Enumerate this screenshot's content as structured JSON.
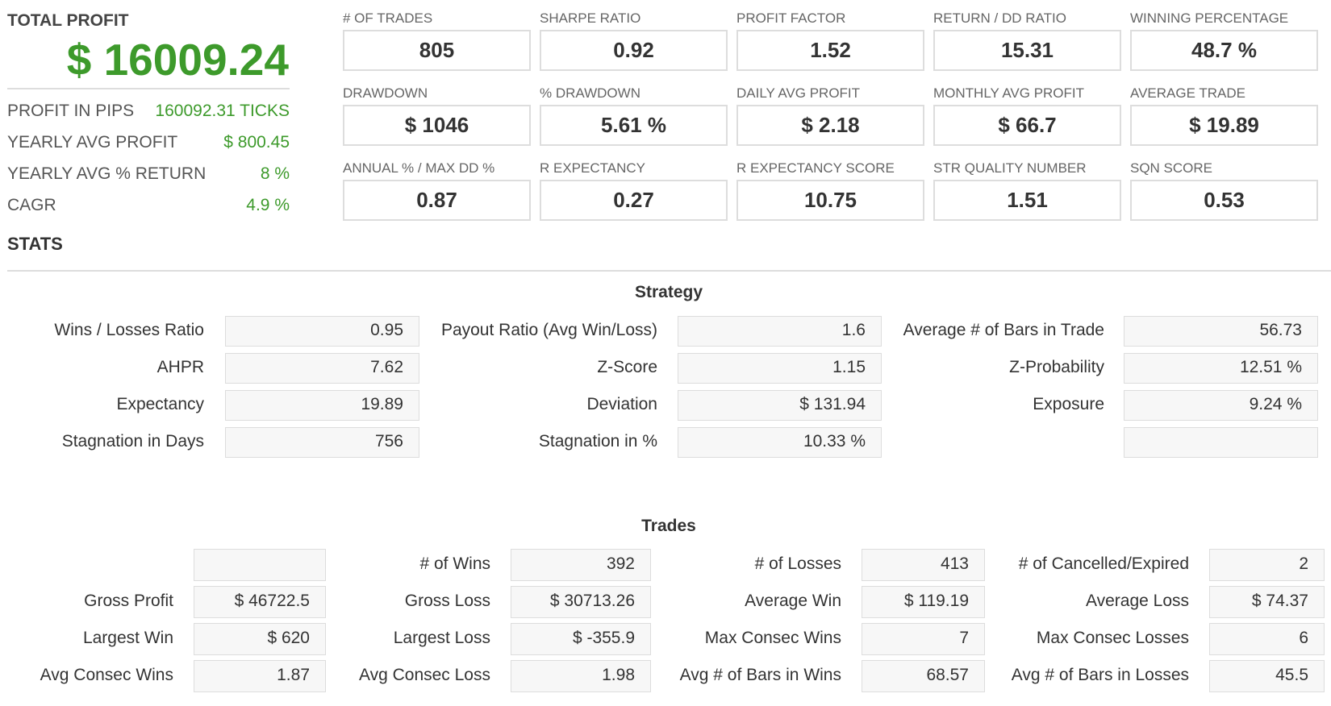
{
  "summary": {
    "title": "TOTAL PROFIT",
    "value": "$ 16009.24",
    "rows": [
      {
        "label": "PROFIT IN PIPS",
        "value": "160092.31 TICKS"
      },
      {
        "label": "YEARLY AVG PROFIT",
        "value": "$ 800.45"
      },
      {
        "label": "YEARLY AVG % RETURN",
        "value": "8 %"
      },
      {
        "label": "CAGR",
        "value": "4.9 %"
      }
    ]
  },
  "metrics": [
    {
      "label": "# OF TRADES",
      "value": "805"
    },
    {
      "label": "SHARPE RATIO",
      "value": "0.92"
    },
    {
      "label": "PROFIT FACTOR",
      "value": "1.52"
    },
    {
      "label": "RETURN / DD RATIO",
      "value": "15.31"
    },
    {
      "label": "WINNING PERCENTAGE",
      "value": "48.7 %"
    },
    {
      "label": "DRAWDOWN",
      "value": "$ 1046"
    },
    {
      "label": "% DRAWDOWN",
      "value": "5.61 %"
    },
    {
      "label": "DAILY AVG PROFIT",
      "value": "$ 2.18"
    },
    {
      "label": "MONTHLY AVG PROFIT",
      "value": "$ 66.7"
    },
    {
      "label": "AVERAGE TRADE",
      "value": "$ 19.89"
    },
    {
      "label": "ANNUAL % / MAX DD %",
      "value": "0.87"
    },
    {
      "label": "R EXPECTANCY",
      "value": "0.27"
    },
    {
      "label": "R EXPECTANCY SCORE",
      "value": "10.75"
    },
    {
      "label": "STR QUALITY NUMBER",
      "value": "1.51"
    },
    {
      "label": "SQN SCORE",
      "value": "0.53"
    }
  ],
  "stats_title": "STATS",
  "strategy": {
    "title": "Strategy",
    "columns": [
      [
        {
          "label": "Wins / Losses Ratio",
          "value": "0.95"
        },
        {
          "label": "AHPR",
          "value": "7.62"
        },
        {
          "label": "Expectancy",
          "value": "19.89"
        },
        {
          "label": "Stagnation in Days",
          "value": "756"
        }
      ],
      [
        {
          "label": "Payout Ratio (Avg Win/Loss)",
          "value": "1.6"
        },
        {
          "label": "Z-Score",
          "value": "1.15"
        },
        {
          "label": "Deviation",
          "value": "$ 131.94"
        },
        {
          "label": "Stagnation in %",
          "value": "10.33 %"
        }
      ],
      [
        {
          "label": "Average # of Bars in Trade",
          "value": "56.73"
        },
        {
          "label": "Z-Probability",
          "value": "12.51 %"
        },
        {
          "label": "Exposure",
          "value": "9.24 %"
        }
      ]
    ]
  },
  "trades": {
    "title": "Trades",
    "columns": [
      [
        {
          "label": "Gross Profit",
          "value": "$ 46722.5"
        },
        {
          "label": "Largest Win",
          "value": "$ 620"
        },
        {
          "label": "Avg Consec Wins",
          "value": "1.87"
        }
      ],
      [
        {
          "label": "# of Wins",
          "value": "392"
        },
        {
          "label": "Gross Loss",
          "value": "$ 30713.26"
        },
        {
          "label": "Largest Loss",
          "value": "$ -355.9"
        },
        {
          "label": "Avg Consec Loss",
          "value": "1.98"
        }
      ],
      [
        {
          "label": "# of Losses",
          "value": "413"
        },
        {
          "label": "Average Win",
          "value": "$ 119.19"
        },
        {
          "label": "Max Consec Wins",
          "value": "7"
        },
        {
          "label": "Avg # of Bars in Wins",
          "value": "68.57"
        }
      ],
      [
        {
          "label": "# of Cancelled/Expired",
          "value": "2"
        },
        {
          "label": "Average Loss",
          "value": "$ 74.37"
        },
        {
          "label": "Max Consec Losses",
          "value": "6"
        },
        {
          "label": "Avg # of Bars in Losses",
          "value": "45.5"
        }
      ]
    ]
  }
}
